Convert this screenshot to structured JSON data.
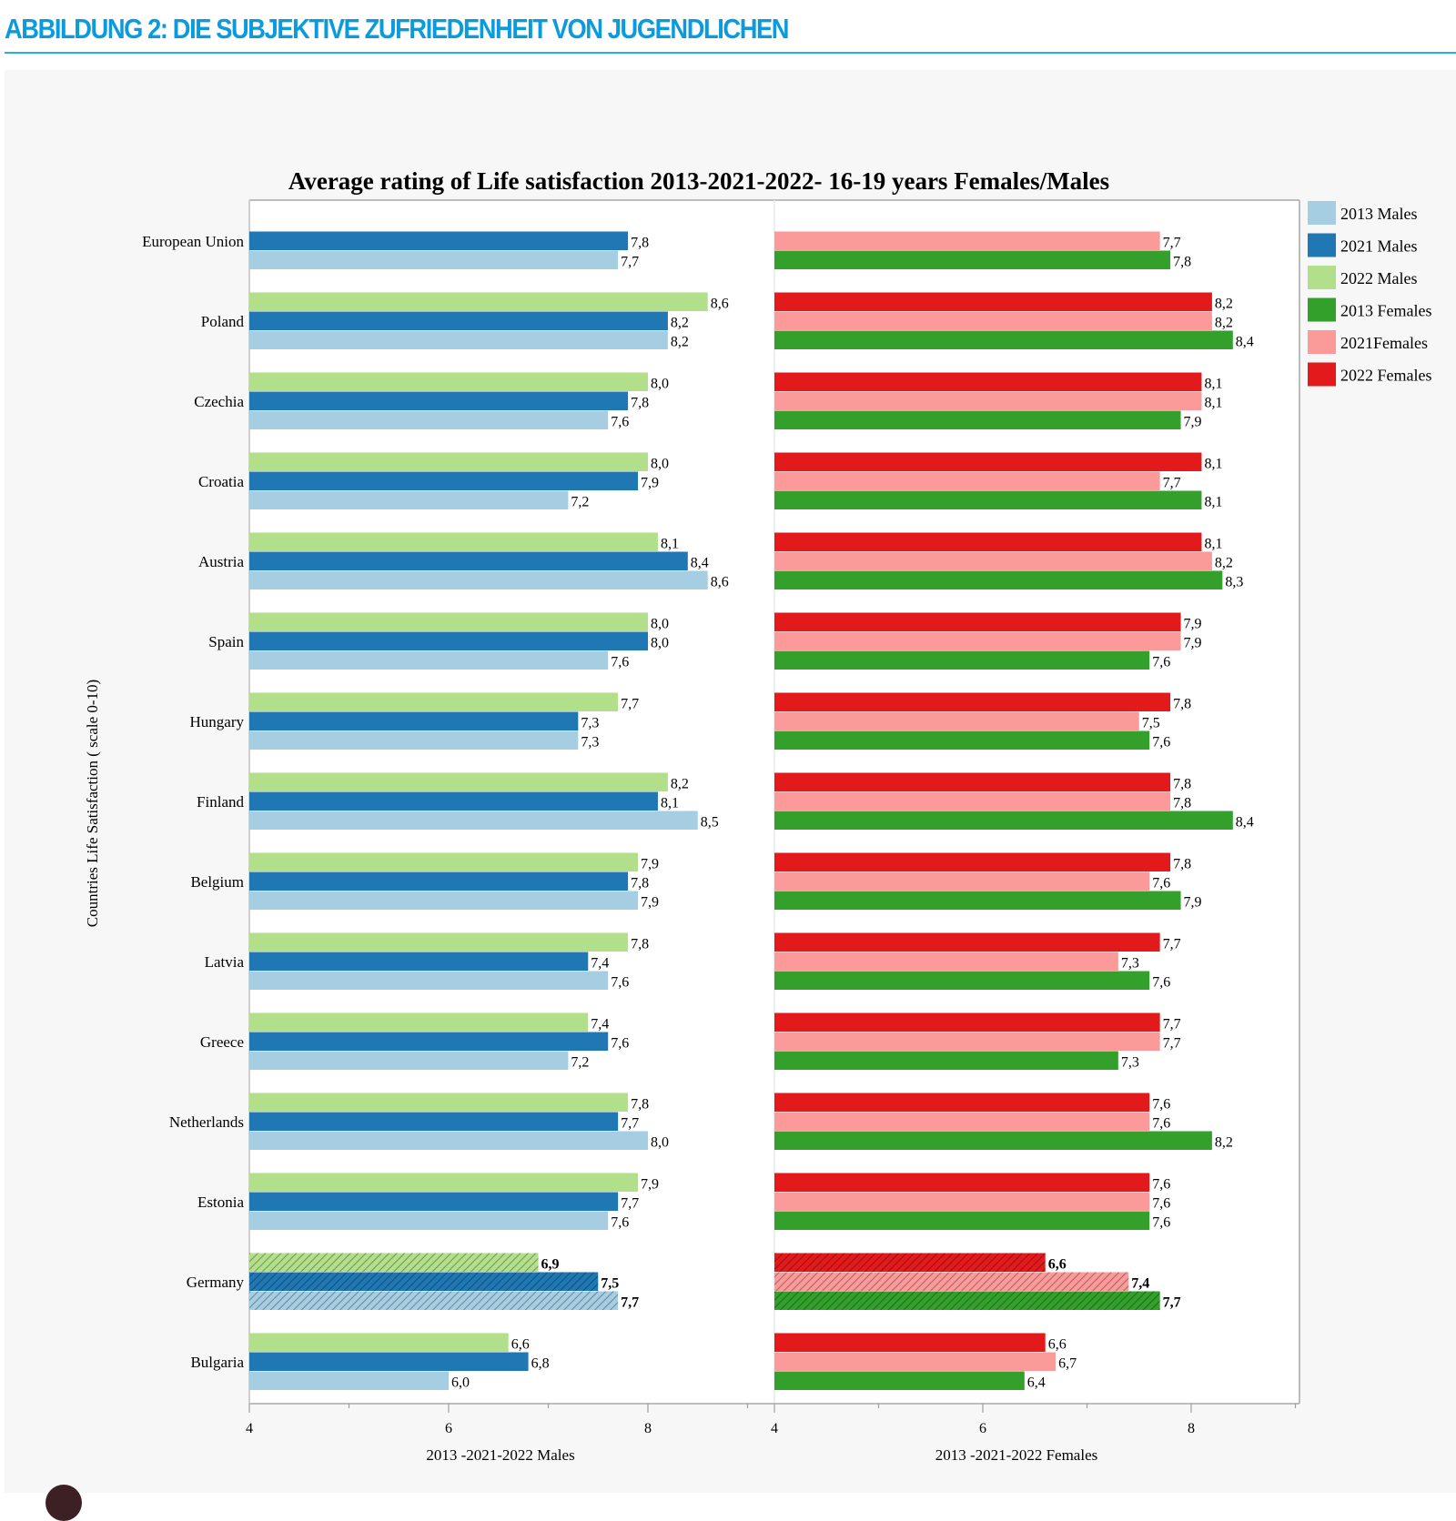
{
  "header": {
    "figure_title": "ABBILDUNG 2: DIE SUBJEKTIVE ZUFRIEDENHEIT VON JUGENDLICHEN",
    "accent_color": "#0b9bdc"
  },
  "chart_data": {
    "type": "bar",
    "orientation": "horizontal",
    "title": "Average rating of Life satisfaction 2013-2021-2022- 16-19 years Females/Males",
    "ylabel": "Countries Life Satisfaction ( scale 0-10)",
    "categories": [
      "European Union",
      "Poland",
      "Czechia",
      "Croatia",
      "Austria",
      "Spain",
      "Hungary",
      "Finland",
      "Belgium",
      "Latvia",
      "Greece",
      "Netherlands",
      "Estonia",
      "Germany",
      "Bulgaria"
    ],
    "highlighted_category": "Germany",
    "panels": [
      {
        "name": "males",
        "xlabel": "2013 -2021-2022 Males",
        "xlim": [
          4,
          9
        ],
        "xticks": [
          4,
          6,
          8
        ],
        "series": [
          {
            "name": "2022 Males",
            "color": "#b2df8a",
            "values": [
              null,
              8.6,
              8.0,
              8.0,
              8.1,
              8.0,
              7.7,
              8.2,
              7.9,
              7.8,
              7.4,
              7.8,
              7.9,
              6.9,
              6.6
            ],
            "labels": [
              "",
              "8,6",
              "8,0",
              "8,0",
              "8,1",
              "8,0",
              "7,7",
              "8,2",
              "7,9",
              "7,8",
              "7,4",
              "7,8",
              "7,9",
              "6,9",
              "6,6"
            ]
          },
          {
            "name": "2021 Males",
            "color": "#1f78b4",
            "values": [
              7.8,
              8.2,
              7.8,
              7.9,
              8.4,
              8.0,
              7.3,
              8.1,
              7.8,
              7.4,
              7.6,
              7.7,
              7.7,
              7.5,
              6.8
            ],
            "labels": [
              "7,8",
              "8,2",
              "7,8",
              "7,9",
              "8,4",
              "8,0",
              "7,3",
              "8,1",
              "7,8",
              "7,4",
              "7,6",
              "7,7",
              "7,7",
              "7,5",
              "6,8"
            ]
          },
          {
            "name": "2013 Males",
            "color": "#a6cee3",
            "values": [
              7.7,
              8.2,
              7.6,
              7.2,
              8.6,
              7.6,
              7.3,
              8.5,
              7.9,
              7.6,
              7.2,
              8.0,
              7.6,
              7.7,
              6.0
            ],
            "labels": [
              "7,7",
              "8,2",
              "7,6",
              "7,2",
              "8,6",
              "7,6",
              "7,3",
              "8,5",
              "7,9",
              "7,6",
              "7,2",
              "8,0",
              "7,6",
              "7,7",
              "6,0"
            ]
          }
        ]
      },
      {
        "name": "females",
        "xlabel": "2013 -2021-2022 Females",
        "xlim": [
          4,
          9
        ],
        "xticks": [
          4,
          6,
          8
        ],
        "series": [
          {
            "name": "2022 Females",
            "color": "#e31a1c",
            "values": [
              null,
              8.2,
              8.1,
              8.1,
              8.1,
              7.9,
              7.8,
              7.8,
              7.8,
              7.7,
              7.7,
              7.6,
              7.6,
              6.6,
              6.6
            ],
            "labels": [
              "",
              "8,2",
              "8,1",
              "8,1",
              "8,1",
              "7,9",
              "7,8",
              "7,8",
              "7,8",
              "7,7",
              "7,7",
              "7,6",
              "7,6",
              "6,6",
              "6,6"
            ]
          },
          {
            "name": "2021Females",
            "color": "#fb9a99",
            "values": [
              7.7,
              8.2,
              8.1,
              7.7,
              8.2,
              7.9,
              7.5,
              7.8,
              7.6,
              7.3,
              7.7,
              7.6,
              7.6,
              7.4,
              6.7
            ],
            "labels": [
              "7,7",
              "8,2",
              "8,1",
              "7,7",
              "8,2",
              "7,9",
              "7,5",
              "7,8",
              "7,6",
              "7,3",
              "7,7",
              "7,6",
              "7,6",
              "7,4",
              "6,7"
            ]
          },
          {
            "name": "2013 Females",
            "color": "#33a02c",
            "values": [
              7.8,
              8.4,
              7.9,
              8.1,
              8.3,
              7.6,
              7.6,
              8.4,
              7.9,
              7.6,
              7.3,
              8.2,
              7.6,
              7.7,
              6.4
            ],
            "labels": [
              "7,8",
              "8,4",
              "7,9",
              "8,1",
              "8,3",
              "7,6",
              "7,6",
              "8,4",
              "7,9",
              "7,6",
              "7,3",
              "8,2",
              "7,6",
              "7,7",
              "6,4"
            ]
          }
        ]
      }
    ],
    "legend": {
      "position": "right",
      "entries": [
        {
          "label": "2013 Males",
          "color": "#a6cee3"
        },
        {
          "label": "2021 Males",
          "color": "#1f78b4"
        },
        {
          "label": "2022 Males",
          "color": "#b2df8a"
        },
        {
          "label": "2013 Females",
          "color": "#33a02c"
        },
        {
          "label": "2021Females",
          "color": "#fb9a99"
        },
        {
          "label": "2022 Females",
          "color": "#e31a1c"
        }
      ]
    },
    "grid": false
  }
}
